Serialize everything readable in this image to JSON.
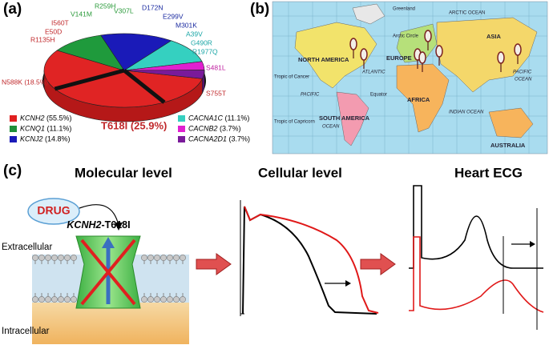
{
  "panels": {
    "a": {
      "label": "(a)",
      "mutations": [
        "N588K (18.5%)",
        "R1135H",
        "E50D",
        "I560T",
        "V141M",
        "R259H",
        "V307L",
        "D172N",
        "E299V",
        "M301K",
        "A39V",
        "G490R",
        "R1977Q",
        "S481L",
        "S755T"
      ],
      "highlight": "T618I (25.9%)",
      "legend": [
        {
          "gene": "KCNH2",
          "share": "(55.5%)"
        },
        {
          "gene": "KCNQ1",
          "share": "(11.1%)"
        },
        {
          "gene": "KCNJ2",
          "share": "(14.8%)"
        },
        {
          "gene": "CACNA1C",
          "share": "(11.1%)"
        },
        {
          "gene": "CACNB2",
          "share": "(3.7%)"
        },
        {
          "gene": "CACNA2D1",
          "share": "(3.7%)"
        }
      ]
    },
    "b": {
      "label": "(b)",
      "map_labels": [
        "Greenland",
        "ARCTIC OCEAN",
        "Arctic Circle",
        "NORTH AMERICA",
        "EUROPE",
        "ASIA",
        "ATLANTIC",
        "PACIFIC",
        "Tropic of Cancer",
        "Equator",
        "AFRICA",
        "INDIAN OCEAN",
        "SOUTH AMERICA",
        "OCEAN",
        "Tropic of Capricorn",
        "AUSTRALIA",
        "PACIFIC",
        "OCEAN"
      ]
    },
    "c": {
      "label": "(c)",
      "sections": [
        "Molecular level",
        "Cellular level",
        "Heart ECG"
      ],
      "drug": "DRUG",
      "extracellular": "Extracellular",
      "intracellular": "Intracellular",
      "channel": {
        "gene": "KCNH2",
        "variant": "-T618I"
      }
    }
  }
}
